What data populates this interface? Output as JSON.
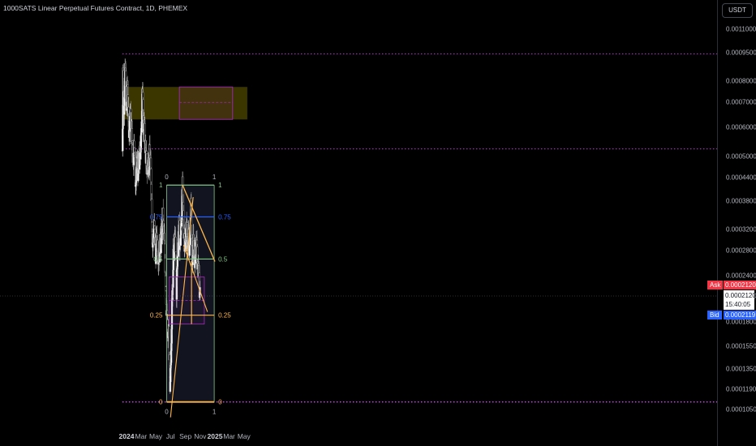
{
  "title": "1000SATS Linear Perpetual Futures Contract, 1D, PHEMEX",
  "currency_button": "USDT",
  "ask": {
    "label": "Ask",
    "value": "0.0002120"
  },
  "bid": {
    "label": "Bid",
    "value": "0.0002119"
  },
  "last_price": {
    "value": "0.0002120",
    "countdown": "15:40:05"
  },
  "colors": {
    "background": "#000000",
    "candle": "#c8c8c8",
    "fib_line": "#ffb74d",
    "trend_line": "#ffb74d",
    "range_green": "#81c784",
    "range_blue": "#2962ff",
    "dotted_level": "#e040fb",
    "zone_fill": "#6b6100",
    "box_outline": "#9c27b0",
    "ask": "#f23645",
    "bid": "#2962ff"
  },
  "chart_data": {
    "type": "candlestick",
    "instrument": "1000SATS Linear Perpetual Futures Contract",
    "interval": "1D",
    "exchange": "PHEMEX",
    "y_scale": "log",
    "ylim": [
      9e-05,
      0.0012
    ],
    "y_ticks": [
      "0.0011000",
      "0.0009500",
      "0.0008000",
      "0.0007000",
      "0.0006000",
      "0.0005000",
      "0.0004400",
      "0.0003800",
      "0.0003200",
      "0.0002800",
      "0.0002400",
      "0.0002120",
      "0.0001800",
      "0.0001550",
      "0.0001350",
      "0.0001190",
      "0.0001050"
    ],
    "x_ticks": [
      {
        "label": "2024",
        "date": "2024-01-01",
        "bold": true
      },
      {
        "label": "Mar",
        "date": "2024-03-01",
        "bold": false
      },
      {
        "label": "May",
        "date": "2024-05-01",
        "bold": false
      },
      {
        "label": "Jul",
        "date": "2024-07-01",
        "bold": false
      },
      {
        "label": "Sep",
        "date": "2024-09-01",
        "bold": false
      },
      {
        "label": "Nov",
        "date": "2024-11-01",
        "bold": false
      },
      {
        "label": "2025",
        "date": "2025-01-01",
        "bold": true
      },
      {
        "label": "Mar",
        "date": "2025-03-01",
        "bold": false
      },
      {
        "label": "May",
        "date": "2025-05-01",
        "bold": false
      }
    ],
    "close_path": [
      [
        "2023-12-15",
        0.00052
      ],
      [
        "2023-12-18",
        0.00088
      ],
      [
        "2023-12-22",
        0.0007
      ],
      [
        "2023-12-27",
        0.00086
      ],
      [
        "2024-01-01",
        0.00065
      ],
      [
        "2024-01-05",
        0.00078
      ],
      [
        "2024-01-10",
        0.0006
      ],
      [
        "2024-01-16",
        0.00066
      ],
      [
        "2024-01-22",
        0.00058
      ],
      [
        "2024-01-28",
        0.0005
      ],
      [
        "2024-02-03",
        0.00055
      ],
      [
        "2024-02-08",
        0.00042
      ],
      [
        "2024-02-14",
        0.00048
      ],
      [
        "2024-02-20",
        0.00045
      ],
      [
        "2024-02-26",
        0.00052
      ],
      [
        "2024-03-02",
        0.00056
      ],
      [
        "2024-03-06",
        0.00078
      ],
      [
        "2024-03-10",
        0.00063
      ],
      [
        "2024-03-14",
        0.0006
      ],
      [
        "2024-03-20",
        0.00052
      ],
      [
        "2024-03-26",
        0.00046
      ],
      [
        "2024-04-01",
        0.00049
      ],
      [
        "2024-04-07",
        0.0005
      ],
      [
        "2024-04-12",
        0.00044
      ],
      [
        "2024-04-18",
        0.00029
      ],
      [
        "2024-04-24",
        0.00033
      ],
      [
        "2024-05-01",
        0.00028
      ],
      [
        "2024-05-07",
        0.0003
      ],
      [
        "2024-05-13",
        0.00027
      ],
      [
        "2024-05-19",
        0.00029
      ],
      [
        "2024-05-25",
        0.00031
      ],
      [
        "2024-05-31",
        0.00034
      ],
      [
        "2024-06-05",
        0.0003
      ],
      [
        "2024-06-10",
        0.00025
      ],
      [
        "2024-06-15",
        0.00019
      ],
      [
        "2024-06-20",
        0.00016
      ],
      [
        "2024-06-25",
        0.00017
      ],
      [
        "2024-06-29",
        0.00011
      ],
      [
        "2024-07-03",
        0.00015
      ],
      [
        "2024-07-08",
        0.00021
      ],
      [
        "2024-07-14",
        0.00028
      ],
      [
        "2024-07-20",
        0.0003
      ],
      [
        "2024-07-26",
        0.00022
      ],
      [
        "2024-07-31",
        0.00028
      ],
      [
        "2024-08-05",
        0.00033
      ],
      [
        "2024-08-10",
        0.00029
      ],
      [
        "2024-08-15",
        0.00034
      ],
      [
        "2024-08-20",
        0.00041
      ],
      [
        "2024-08-24",
        0.00033
      ],
      [
        "2024-08-30",
        0.00029
      ],
      [
        "2024-09-06",
        0.00032
      ],
      [
        "2024-09-12",
        0.0003
      ],
      [
        "2024-09-18",
        0.00029
      ],
      [
        "2024-09-24",
        0.00036
      ],
      [
        "2024-09-29",
        0.00027
      ],
      [
        "2024-10-04",
        0.00029
      ],
      [
        "2024-10-10",
        0.00027
      ],
      [
        "2024-10-16",
        0.00029
      ],
      [
        "2024-10-21",
        0.00026
      ],
      [
        "2024-10-26",
        0.00024
      ],
      [
        "2024-10-31",
        0.000212
      ]
    ],
    "annotations": [
      {
        "kind": "zone",
        "from": "2023-12-15",
        "to": "2025-05-15",
        "low": 0.00063,
        "high": 0.00077,
        "fill": "zone_fill"
      },
      {
        "kind": "box",
        "from": "2024-08-07",
        "to": "2025-03-15",
        "low": 0.00063,
        "high": 0.00077,
        "midline": 0.0007
      },
      {
        "kind": "box",
        "from": "2024-06-25",
        "to": "2024-11-18",
        "low": 0.000178,
        "high": 0.000238,
        "midline": 0.000206
      },
      {
        "kind": "dotted_level",
        "price": 0.000945
      },
      {
        "kind": "dotted_level",
        "price": 0.000525
      },
      {
        "kind": "dotted_level",
        "price": 0.00011
      },
      {
        "kind": "range",
        "from": "2024-06-15",
        "to": "2024-12-29",
        "top_price": 0.00042,
        "bottom_price": 0.00011
      },
      {
        "kind": "trendline",
        "from": [
          "2024-07-01",
          0.0001
        ],
        "to": [
          "2024-10-03",
          0.00039
        ]
      },
      {
        "kind": "trendline",
        "from": [
          "2024-08-20",
          0.00042
        ],
        "to": [
          "2025-01-01",
          0.000262
        ]
      },
      {
        "kind": "trendline",
        "from": [
          "2024-08-24",
          0.00029
        ],
        "to": [
          "2024-12-01",
          0.000192
        ]
      },
      {
        "kind": "vertical_line",
        "date": "2024-09-26",
        "low": 0.000178,
        "high": 0.000263
      }
    ],
    "fib_levels": [
      {
        "label": "1",
        "price": 0.00042,
        "color": "range_green"
      },
      {
        "label": "0.75",
        "price": 0.000345,
        "color": "range_blue"
      },
      {
        "label": "0.5",
        "price": 0.000266,
        "color": "range_green"
      },
      {
        "label": "0.25",
        "price": 0.000188,
        "color": "fib_line"
      },
      {
        "label": "0",
        "price": 0.00011,
        "color": "fib_line"
      }
    ],
    "range_corner_labels": {
      "top_left": "0",
      "top_right": "1",
      "bottom_left": "0",
      "bottom_right": "1"
    }
  }
}
